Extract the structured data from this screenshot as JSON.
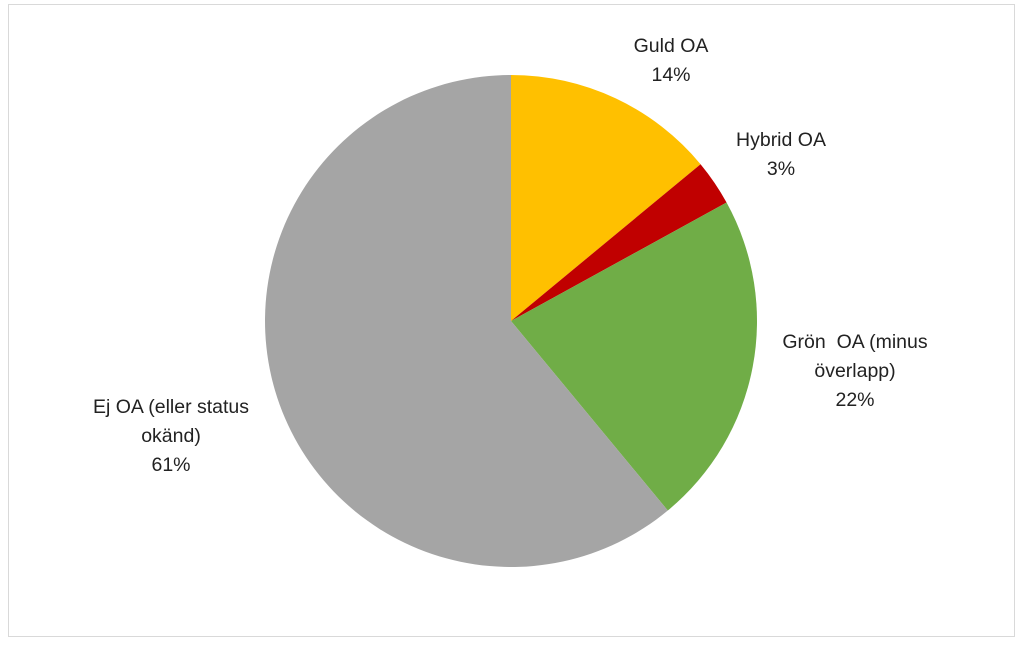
{
  "chart_data": {
    "type": "pie",
    "start_angle_deg": 0,
    "direction": "clockwise",
    "slices": [
      {
        "label_lines": [
          "Guld OA"
        ],
        "percent_label": "14%",
        "value": 14,
        "color": "#ffc000"
      },
      {
        "label_lines": [
          "Hybrid OA"
        ],
        "percent_label": "3%",
        "value": 3,
        "color": "#c00000"
      },
      {
        "label_lines": [
          "Grön  OA (minus",
          "överlapp)"
        ],
        "percent_label": "22%",
        "value": 22,
        "color": "#70ad47"
      },
      {
        "label_lines": [
          "Ej OA (eller status",
          "okänd)"
        ],
        "percent_label": "61%",
        "value": 61,
        "color": "#a5a5a5"
      }
    ],
    "legend": "none"
  }
}
